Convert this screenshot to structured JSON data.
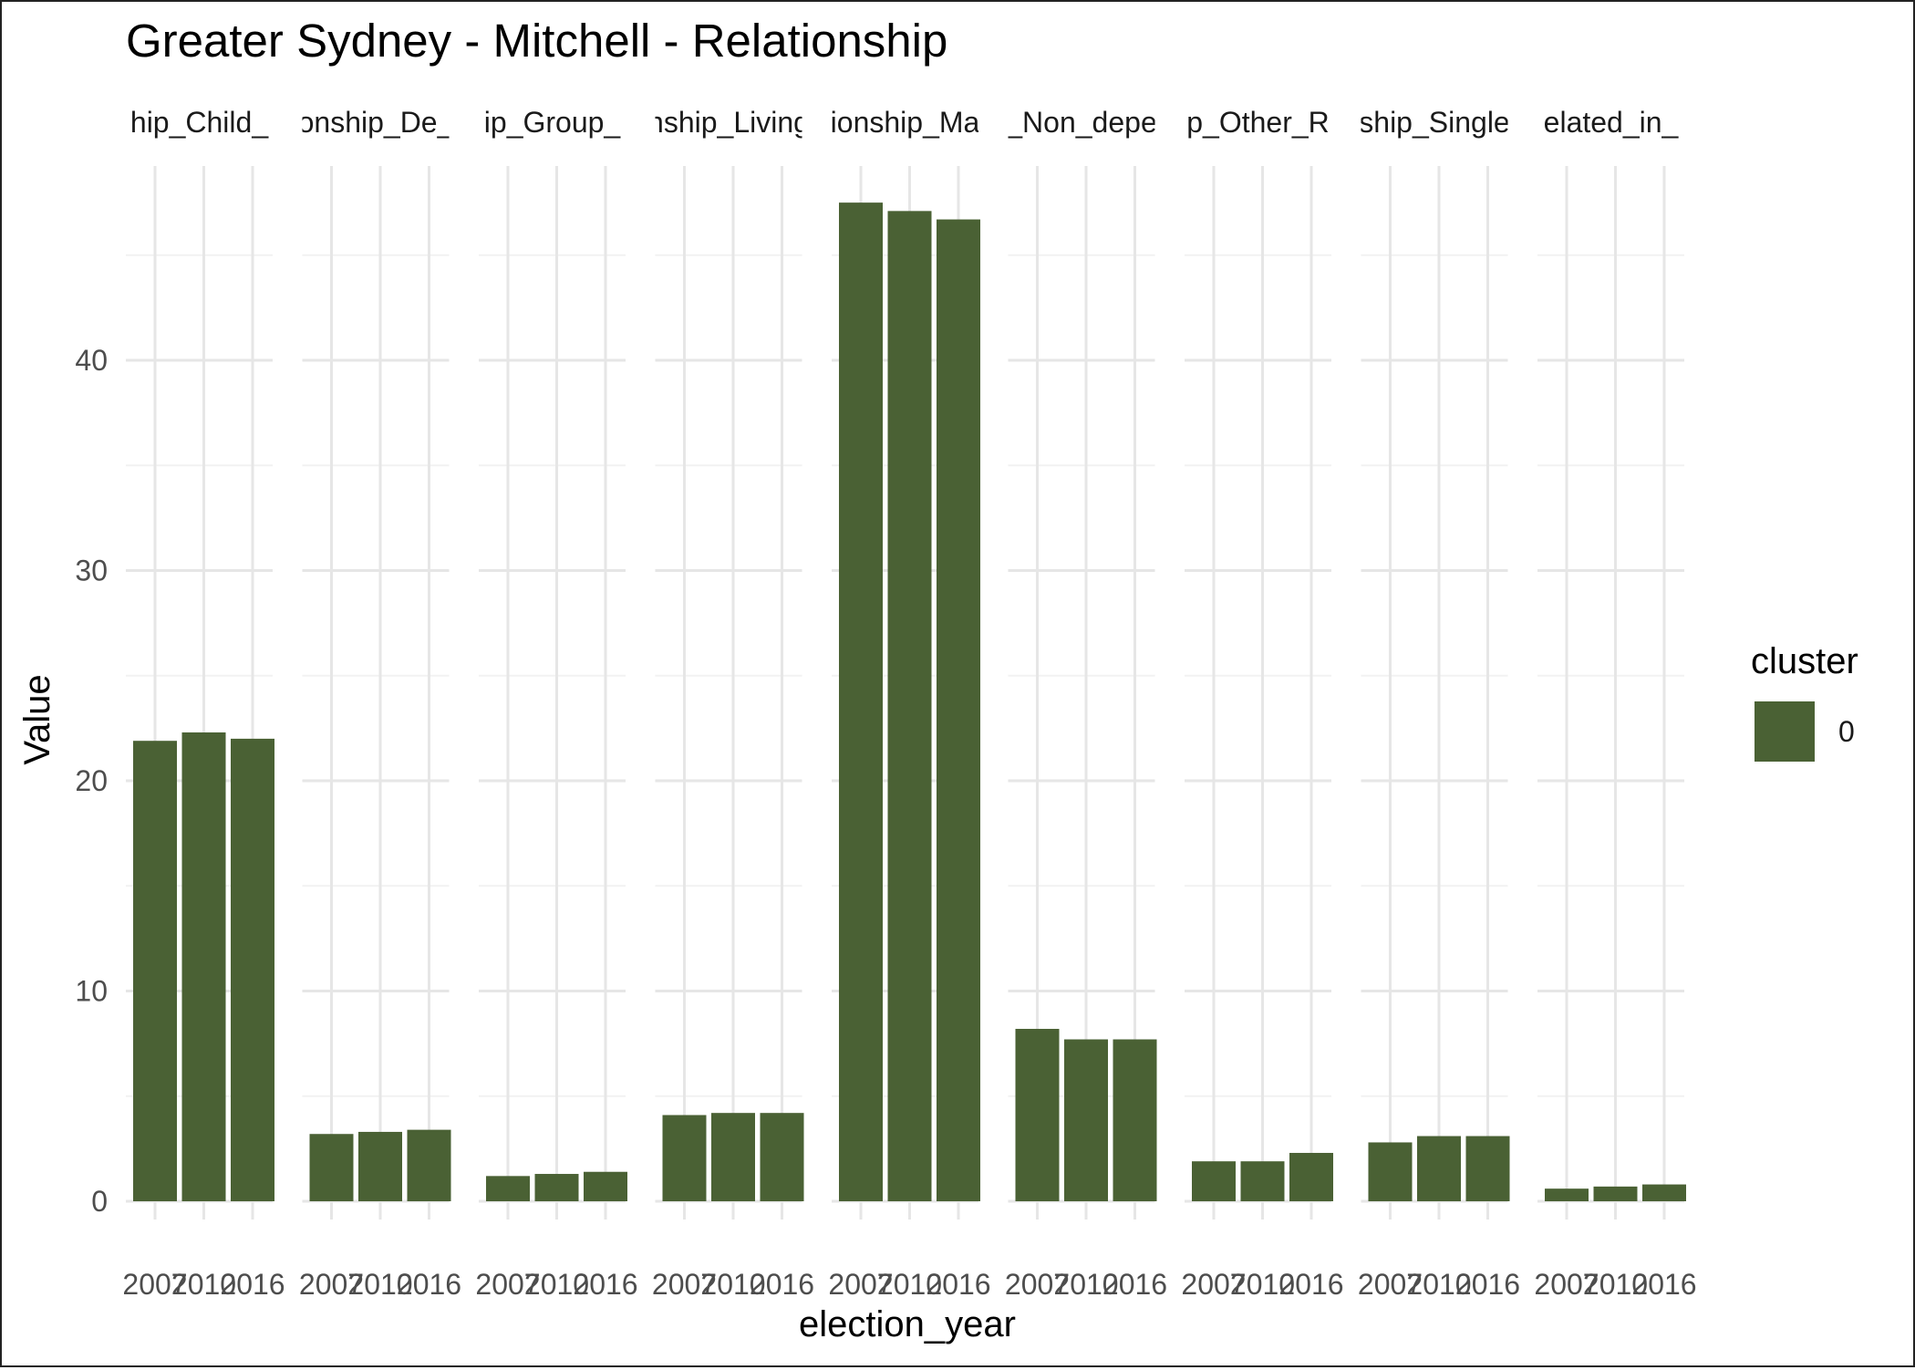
{
  "chart_data": {
    "type": "bar",
    "title": "Greater Sydney - Mitchell - Relationship",
    "xlabel": "election_year",
    "ylabel": "Value",
    "ylim": [
      0,
      48
    ],
    "y_ticks": [
      0,
      10,
      20,
      30,
      40
    ],
    "grid": true,
    "legend": {
      "title": "cluster",
      "position": "right",
      "items": [
        {
          "label": "0",
          "color": "#4a6134"
        }
      ]
    },
    "categories": [
      "2007",
      "2010",
      "2016"
    ],
    "facets": [
      {
        "label": "hip_Child_",
        "values": [
          21.9,
          22.3,
          22.0
        ]
      },
      {
        "label": "onship_De_",
        "values": [
          3.2,
          3.3,
          3.4
        ]
      },
      {
        "label": "ip_Group_",
        "values": [
          1.2,
          1.3,
          1.4
        ]
      },
      {
        "label": "nship_Living",
        "values": [
          4.1,
          4.2,
          4.2
        ]
      },
      {
        "label": "ionship_Ma",
        "values": [
          47.5,
          47.1,
          46.7
        ]
      },
      {
        "label": "_Non_depe",
        "values": [
          8.2,
          7.7,
          7.7
        ]
      },
      {
        "label": "p_Other_R",
        "values": [
          1.9,
          1.9,
          2.3
        ]
      },
      {
        "label": "ship_Single",
        "values": [
          2.8,
          3.1,
          3.1
        ]
      },
      {
        "label": "elated_in_",
        "values": [
          0.6,
          0.7,
          0.8
        ]
      }
    ]
  },
  "colors": {
    "bar": "#4a6134",
    "grid_major": "#e6e6e6",
    "grid_minor": "#f2f2f2",
    "text": "#000000",
    "tick_text": "#4d4d4d"
  }
}
